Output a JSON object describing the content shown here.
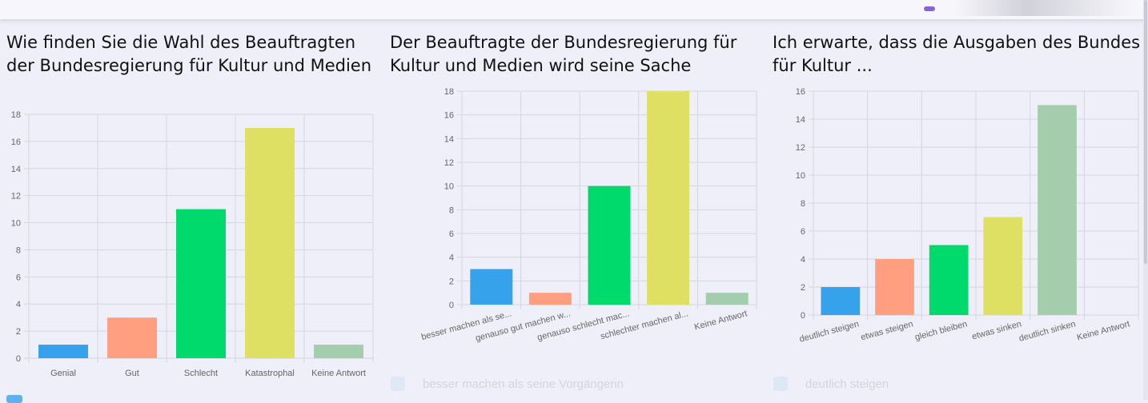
{
  "colors": {
    "blue": "#36a2eb",
    "salmon": "#ff9f80",
    "green": "#00d96b",
    "yellow": "#dde062",
    "sage": "#a3cdad"
  },
  "charts": [
    {
      "title": "Wie finden Sie die Wahl des Beauftragten der Bundesregierung für Kultur und Medien",
      "chart_data": {
        "type": "bar",
        "categories": [
          "Genial",
          "Gut",
          "Schlecht",
          "Katastrophal",
          "Keine Antwort"
        ],
        "values": [
          1,
          3,
          11,
          17,
          1
        ],
        "ylim": [
          0,
          18
        ],
        "yticks": [
          0,
          2,
          4,
          6,
          8,
          10,
          12,
          14,
          16,
          18
        ],
        "grid": true,
        "bar_colors": [
          "#36a2eb",
          "#ff9f80",
          "#00d96b",
          "#dde062",
          "#a3cdad"
        ],
        "tick_rotation": 0
      }
    },
    {
      "title": "Der Beauftragte der Bundesregierung für Kultur und Medien wird seine Sache",
      "chart_data": {
        "type": "bar",
        "categories": [
          "besser machen als se...",
          "genauso gut machen w...",
          "genauso schlecht mac...",
          "schlechter machen al...",
          "Keine Antwort"
        ],
        "values": [
          3,
          1,
          10,
          18,
          1
        ],
        "ylim": [
          0,
          18
        ],
        "yticks": [
          0,
          2,
          4,
          6,
          8,
          10,
          12,
          14,
          16,
          18
        ],
        "grid": true,
        "bar_colors": [
          "#36a2eb",
          "#ff9f80",
          "#00d96b",
          "#dde062",
          "#a3cdad"
        ],
        "tick_rotation": -15
      },
      "legend_label": "besser machen als seine Vorgängerin"
    },
    {
      "title": "Ich erwarte, dass die Ausgaben des Bundes für Kultur ...",
      "chart_data": {
        "type": "bar",
        "categories": [
          "deutlich steigen",
          "etwas steigen",
          "gleich bleiben",
          "etwas sinken",
          "deutlich sinken",
          "Keine Antwort"
        ],
        "values": [
          2,
          4,
          5,
          7,
          15,
          0
        ],
        "ylim": [
          0,
          16
        ],
        "yticks": [
          0,
          2,
          4,
          6,
          8,
          10,
          12,
          14,
          16
        ],
        "grid": true,
        "bar_colors": [
          "#36a2eb",
          "#ff9f80",
          "#00d96b",
          "#dde062",
          "#a3cdad",
          "#36a2eb"
        ],
        "tick_rotation": -15
      },
      "legend_label": "deutlich steigen"
    }
  ]
}
